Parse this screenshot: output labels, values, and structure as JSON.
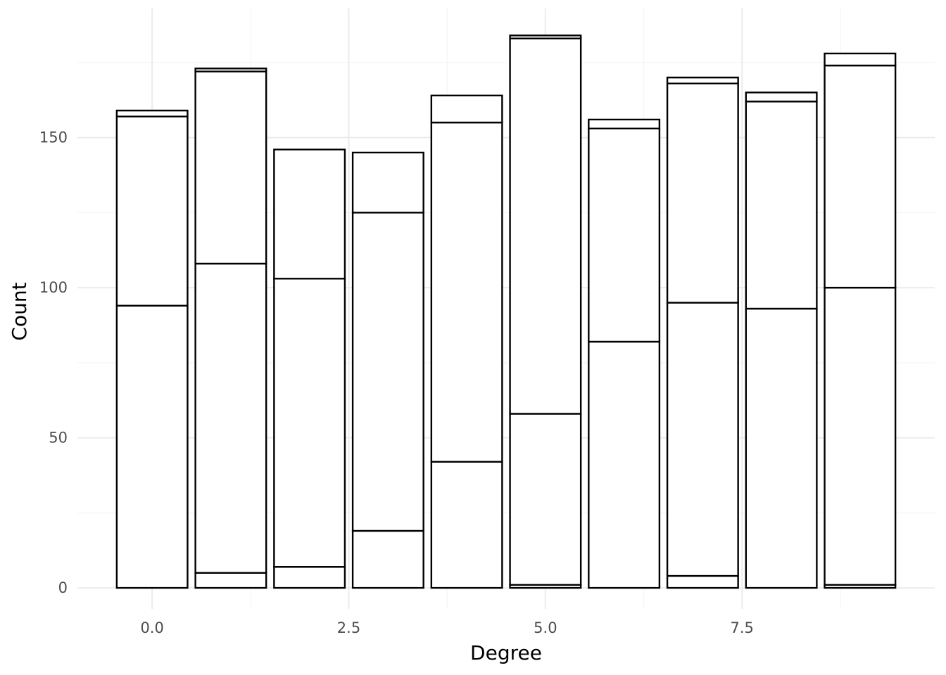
{
  "chart_data": {
    "type": "bar",
    "stacked": true,
    "xlabel": "Degree",
    "ylabel": "Count",
    "x": [
      0,
      1,
      2,
      3,
      4,
      5,
      6,
      7,
      8,
      9
    ],
    "stack_boundaries": [
      [
        94,
        157,
        159
      ],
      [
        5,
        108,
        172,
        173
      ],
      [
        7,
        103,
        146
      ],
      [
        19,
        125,
        145
      ],
      [
        42,
        155,
        164
      ],
      [
        1,
        58,
        183,
        184
      ],
      [
        82,
        153,
        156
      ],
      [
        4,
        95,
        168,
        170
      ],
      [
        93,
        162,
        165
      ],
      [
        1,
        100,
        174,
        178
      ]
    ],
    "xlim": [
      -0.95,
      9.95
    ],
    "ylim": [
      -7,
      193
    ],
    "x_ticks": [
      0,
      2.5,
      5,
      7.5
    ],
    "x_tick_labels": [
      "0.0",
      "2.5",
      "5.0",
      "7.5"
    ],
    "y_ticks": [
      0,
      50,
      100,
      150
    ],
    "y_tick_labels": [
      "0",
      "50",
      "100",
      "150"
    ],
    "bar_width": 0.9,
    "grid": true,
    "legend": "none"
  }
}
